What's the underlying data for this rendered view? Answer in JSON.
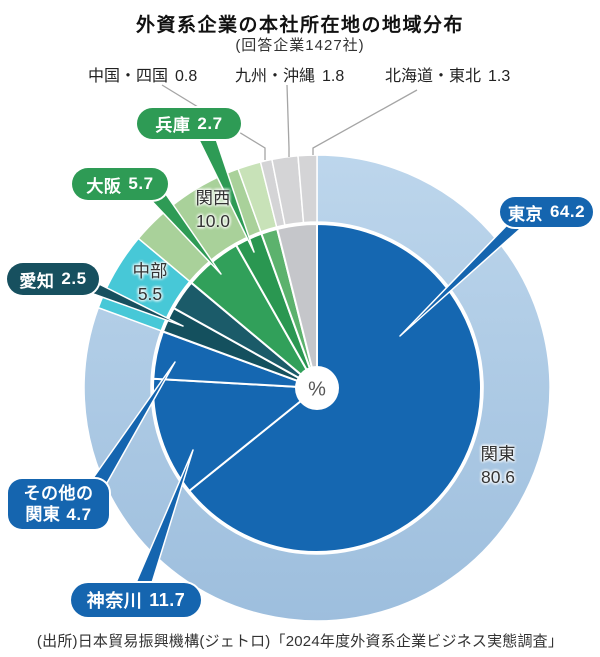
{
  "title": "外資系企業の本社所在地の地域分布",
  "subtitle": "(回答企業1427社)",
  "source": "(出所)日本貿易振興機構(ジェトロ)「2024年度外資系企業ビジネス実態調査」",
  "center_label": "%",
  "top_callouts": [
    {
      "key": "chugoku-shikoku",
      "label": "中国・四国",
      "value": "0.8"
    },
    {
      "key": "kyushu-okinawa",
      "label": "九州・沖縄",
      "value": "1.8"
    },
    {
      "key": "hokkaido-tohoku",
      "label": "北海道・東北",
      "value": "1.3"
    }
  ],
  "badges": {
    "hyogo": {
      "label": "兵庫",
      "value": "2.7"
    },
    "osaka": {
      "label": "大阪",
      "value": "5.7"
    },
    "aichi": {
      "label": "愛知",
      "value": "2.5"
    },
    "tokyo": {
      "label": "東京",
      "value": "64.2"
    },
    "sonota_kanto": {
      "line1": "その他の",
      "line2": "関東",
      "value": "4.7"
    },
    "kanagawa": {
      "label": "神奈川",
      "value": "11.7"
    }
  },
  "ring_labels": {
    "kansai": {
      "label": "関西",
      "value": "10.0"
    },
    "chubu": {
      "label": "中部",
      "value": "5.5"
    },
    "kanto": {
      "label": "関東",
      "value": "80.6"
    }
  },
  "colors": {
    "badge_blue": "#1565af",
    "badge_green": "#2e9b55",
    "badge_teal": "#17505f",
    "inner_blue": "#1567b1",
    "teal_dark": "#14505e",
    "teal": "#1b5b69",
    "green_osaka": "#31a05a",
    "green_hyogo": "#2a9751",
    "green_light": "#5cb26d",
    "gray_inner": "#c5c6ca",
    "ring_kanto_top": "#bdd6ec",
    "ring_kanto_bottom": "#9dbedd",
    "ring_chubu": "#47c8d7",
    "ring_kansai": "#a9d19a",
    "ring_kansai_pale": "#c8e2b8",
    "ring_gray": "#d4d4d6"
  },
  "chart_data": {
    "type": "pie",
    "unit": "%",
    "title": "外資系企業の本社所在地の地域分布",
    "respondents": 1427,
    "start_angle_deg": 0,
    "direction": "clockwise",
    "inner_slices": [
      {
        "key": "tokyo",
        "name": "東京",
        "value": 64.2,
        "color": "#1567b1"
      },
      {
        "key": "kanagawa",
        "name": "神奈川",
        "value": 11.7,
        "color": "#1567b1"
      },
      {
        "key": "other-kanto",
        "name": "その他の関東",
        "value": 4.7,
        "color": "#1567b1"
      },
      {
        "key": "aichi",
        "name": "愛知",
        "value": 2.5,
        "color": "#14505e"
      },
      {
        "key": "other-chubu",
        "name": "中部(その他)",
        "value": 3.0,
        "color": "#1b5b69",
        "label_shown": false
      },
      {
        "key": "osaka",
        "name": "大阪",
        "value": 5.7,
        "color": "#31a05a"
      },
      {
        "key": "hyogo",
        "name": "兵庫",
        "value": 2.7,
        "color": "#2a9751"
      },
      {
        "key": "other-kansai",
        "name": "関西(その他)",
        "value": 1.6,
        "color": "#5cb26d",
        "label_shown": false
      },
      {
        "key": "chugoku-shikoku",
        "name": "中国・四国",
        "value": 0.8,
        "color": "#c5c6ca",
        "merge": true
      },
      {
        "key": "kyushu-okinawa",
        "name": "九州・沖縄",
        "value": 1.8,
        "color": "#c5c6ca",
        "merge": true
      },
      {
        "key": "hokkaido-tohoku",
        "name": "北海道・東北",
        "value": 1.3,
        "color": "#c5c6ca",
        "merge": true
      }
    ],
    "outer_segments": [
      {
        "key": "kanto",
        "name": "関東",
        "value": 80.6,
        "color": "gradient"
      },
      {
        "key": "chubu",
        "name": "中部",
        "value": 5.5,
        "color": "#47c8d7"
      },
      {
        "key": "kansai",
        "name": "関西",
        "value": 10.0,
        "color": "#a9d19a"
      },
      {
        "key": "chugoku-shikoku",
        "name": "中国・四国",
        "value": 0.8,
        "color": "#d4d4d6"
      },
      {
        "key": "kyushu-okinawa",
        "name": "九州・沖縄",
        "value": 1.8,
        "color": "#d4d4d6"
      },
      {
        "key": "hokkaido-tohoku",
        "name": "北海道・東北",
        "value": 1.3,
        "color": "#d4d4d6"
      }
    ]
  }
}
